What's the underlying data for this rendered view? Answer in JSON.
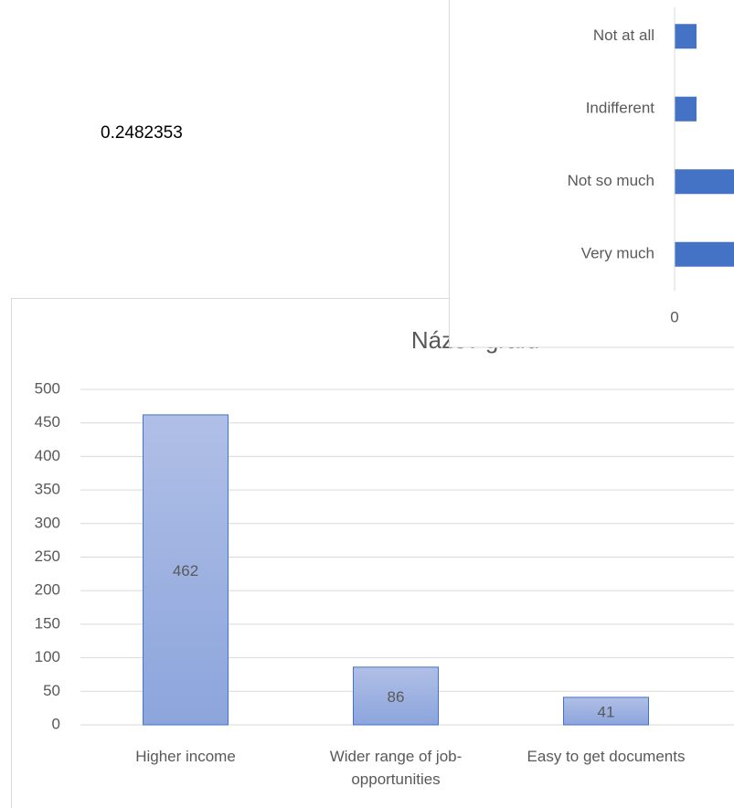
{
  "cell_text": "0.2482353",
  "chart_data": [
    {
      "type": "bar",
      "title": "Název grafu",
      "categories": [
        "Higher income",
        "Wider range of job-opportunities",
        "Easy to get documents"
      ],
      "values": [
        462,
        86,
        41
      ],
      "color": "#4472c4",
      "ylim": [
        0,
        500
      ],
      "yticks": [
        0,
        50,
        100,
        150,
        200,
        250,
        300,
        350,
        400,
        450,
        500
      ],
      "grid": true
    },
    {
      "type": "barh",
      "categories": [
        "Very much",
        "Not so much",
        "Indifferent",
        "Not at all"
      ],
      "values": [
        200,
        180,
        20,
        20
      ],
      "color": "#4472c4",
      "xlim": [
        0,
        500
      ],
      "xticks": [
        0
      ]
    }
  ]
}
